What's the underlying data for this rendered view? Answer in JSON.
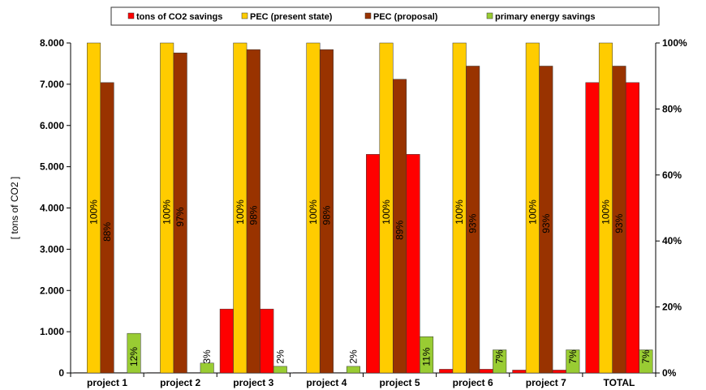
{
  "chart_data": {
    "type": "bar",
    "categories": [
      "project 1",
      "project 2",
      "project 3",
      "project 4",
      "project 5",
      "project 6",
      "project 7",
      "TOTAL"
    ],
    "ylabel": "[ tons of CO2 ]",
    "ylim": [
      0,
      8000
    ],
    "y_ticks": [
      "0",
      "1.000",
      "2.000",
      "3.000",
      "4.000",
      "5.000",
      "6.000",
      "7.000",
      "8.000"
    ],
    "y2lim": [
      0,
      100
    ],
    "y2_ticks": [
      "0%",
      "20%",
      "40%",
      "60%",
      "80%",
      "100%"
    ],
    "legend_position": "top",
    "grid": false,
    "series": [
      {
        "name": "tons of CO2 savings",
        "axis": "left",
        "color": "#ff0000",
        "values": [
          10,
          10,
          1550,
          10,
          5300,
          90,
          70,
          7040
        ]
      },
      {
        "name": "PEC (present state)",
        "axis": "right",
        "color": "#ffcc00",
        "values": [
          100,
          100,
          100,
          100,
          100,
          100,
          100,
          100
        ],
        "labels": [
          "100%",
          "100%",
          "100%",
          "100%",
          "100%",
          "100%",
          "100%",
          "100%"
        ]
      },
      {
        "name": "PEC (proposal)",
        "axis": "right",
        "color": "#993300",
        "values": [
          88,
          97,
          98,
          98,
          89,
          93,
          93,
          93
        ],
        "labels": [
          "88%",
          "97%",
          "98%",
          "98%",
          "89%",
          "93%",
          "93%",
          "93%"
        ]
      },
      {
        "name": "tons of CO2 savings",
        "axis": "left",
        "color": "#ff0000",
        "legend": false,
        "values": [
          10,
          10,
          1550,
          10,
          5300,
          90,
          70,
          7040
        ]
      },
      {
        "name": "primary energy savings",
        "axis": "right",
        "color": "#99cc33",
        "values": [
          12,
          3,
          2,
          2,
          11,
          7,
          7,
          7
        ],
        "labels": [
          "12%",
          "3%",
          "2%",
          "2%",
          "11%",
          "7%",
          "7%",
          "7%"
        ]
      }
    ]
  }
}
